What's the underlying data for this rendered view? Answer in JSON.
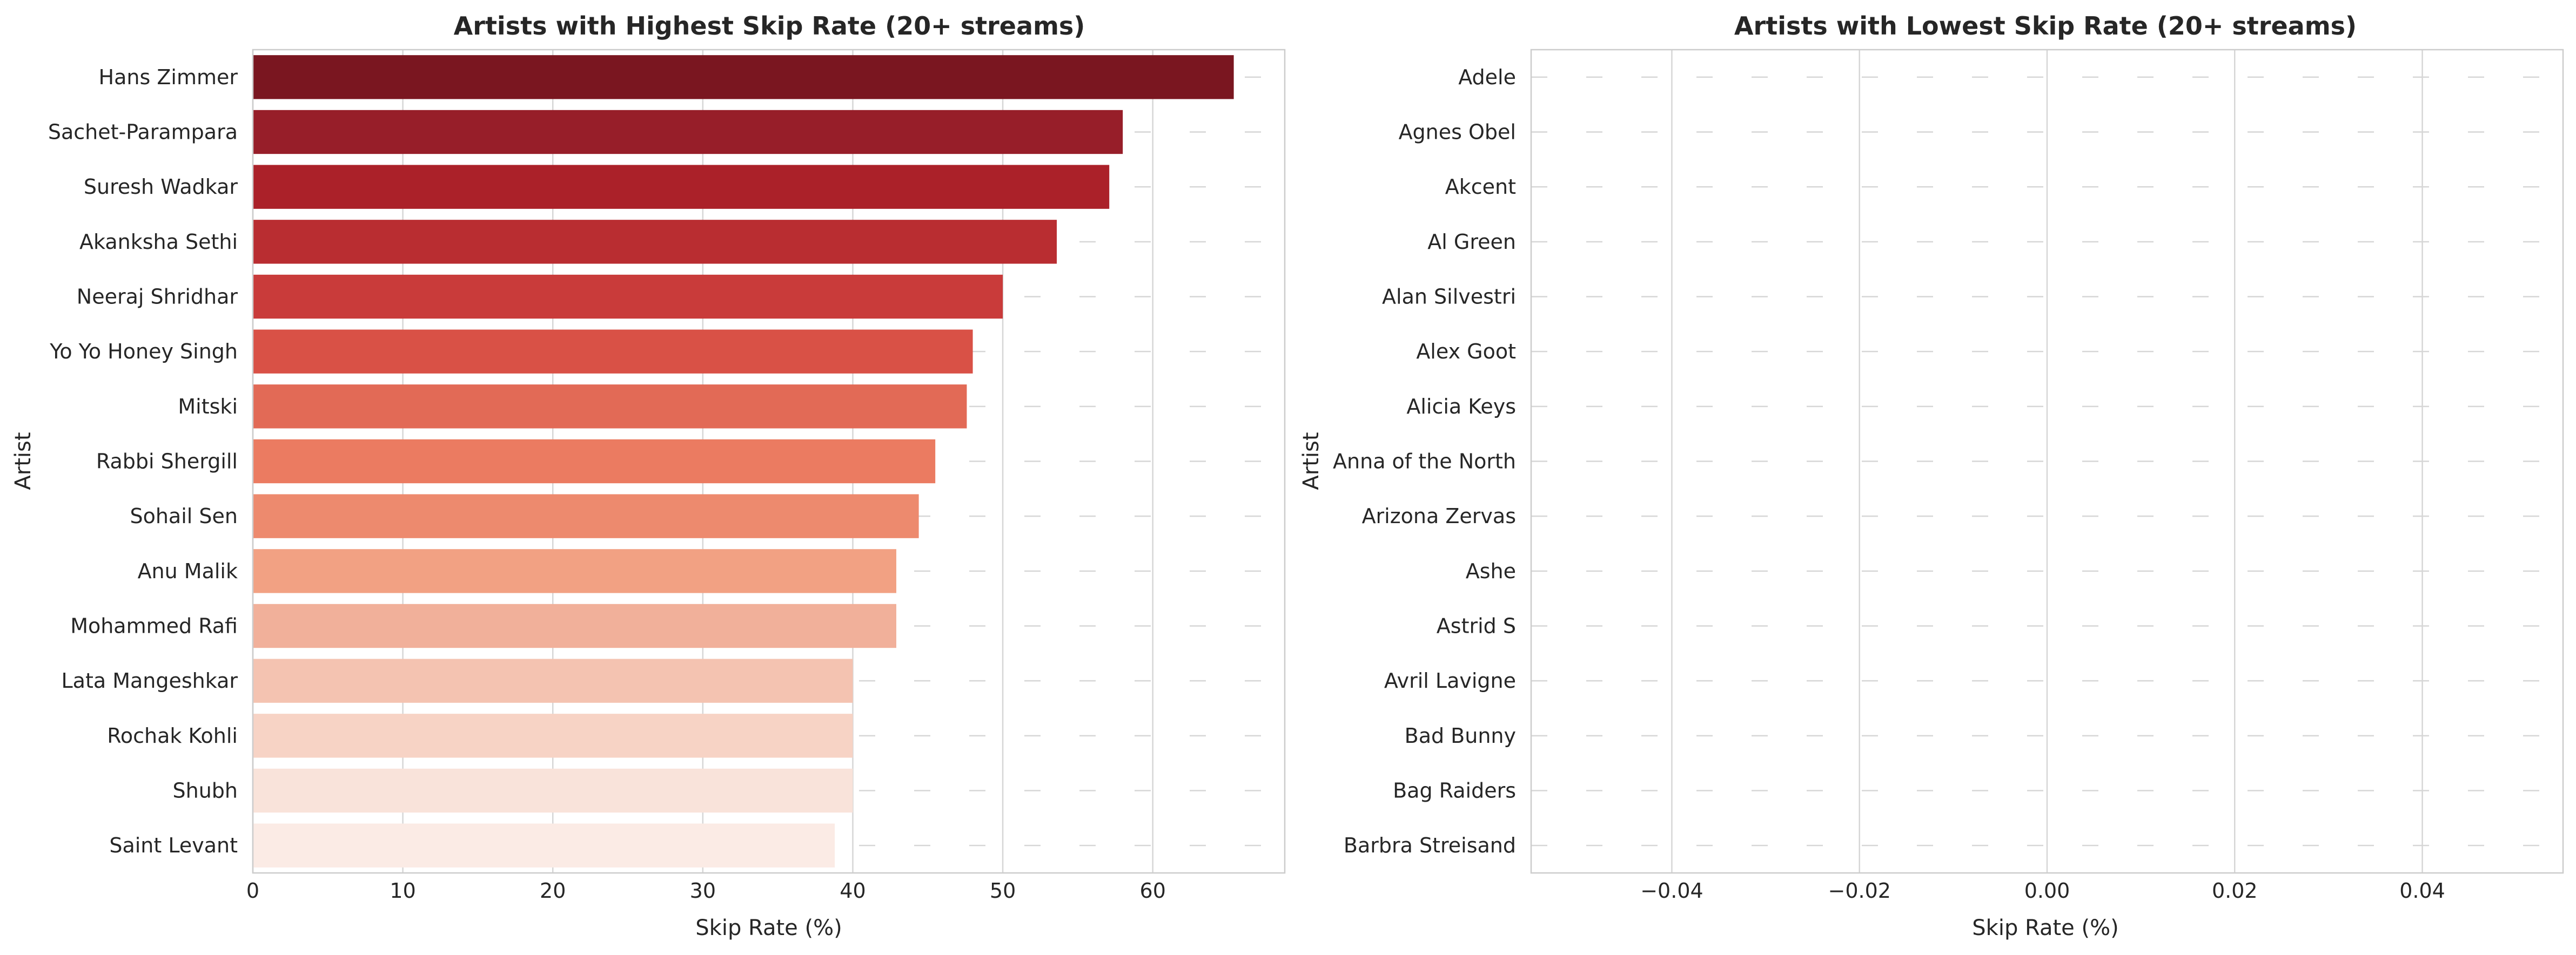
{
  "chart_data": [
    {
      "type": "bar",
      "orientation": "horizontal",
      "title": "Artists with Highest Skip Rate (20+ streams)",
      "xlabel": "Skip Rate (%)",
      "ylabel": "Artist",
      "xlim": [
        0,
        68.8
      ],
      "xticks": [
        0,
        10,
        20,
        30,
        40,
        50,
        60
      ],
      "xtick_labels": [
        "0",
        "10",
        "20",
        "30",
        "40",
        "50",
        "60"
      ],
      "grid": true,
      "palette": "Reds (dark to light)",
      "categories": [
        "Hans Zimmer",
        "Sachet-Parampara",
        "Suresh Wadkar",
        "Akanksha Sethi",
        "Neeraj Shridhar",
        "Yo Yo Honey Singh",
        "Mitski",
        "Rabbi Shergill",
        "Sohail Sen",
        "Anu Malik",
        "Mohammed Rafi",
        "Lata Mangeshkar",
        "Rochak Kohli",
        "Shubh",
        "Saint Levant"
      ],
      "values": [
        65.4,
        58.0,
        57.1,
        53.6,
        50.0,
        48.0,
        47.6,
        45.5,
        44.4,
        42.9,
        42.9,
        40.0,
        40.0,
        40.0,
        38.8
      ],
      "colors": [
        "#7a1620",
        "#971e29",
        "#ab2129",
        "#b92d31",
        "#c93b3a",
        "#d95146",
        "#e26a56",
        "#eb7b61",
        "#ed8a6e",
        "#f2a183",
        "#f1b09a",
        "#f4c3b1",
        "#f7d3c5",
        "#f9e3da",
        "#fbebe5"
      ]
    },
    {
      "type": "bar",
      "orientation": "horizontal",
      "title": "Artists with Lowest Skip Rate (20+ streams)",
      "xlabel": "Skip Rate (%)",
      "ylabel": "Artist",
      "xlim": [
        -0.055,
        0.055
      ],
      "xticks": [
        -0.04,
        -0.02,
        0.0,
        0.02,
        0.04
      ],
      "xtick_labels": [
        "−0.04",
        "−0.02",
        "0.00",
        "0.02",
        "0.04"
      ],
      "grid": true,
      "palette": "Greens",
      "categories": [
        "Adele",
        "Agnes Obel",
        "Akcent",
        "Al Green",
        "Alan Silvestri",
        "Alex Goot",
        "Alicia Keys",
        "Anna of the North",
        "Arizona Zervas",
        "Ashe",
        "Astrid S",
        "Avril Lavigne",
        "Bad Bunny",
        "Bag Raiders",
        "Barbra Streisand"
      ],
      "values": [
        0,
        0,
        0,
        0,
        0,
        0,
        0,
        0,
        0,
        0,
        0,
        0,
        0,
        0,
        0
      ]
    }
  ]
}
